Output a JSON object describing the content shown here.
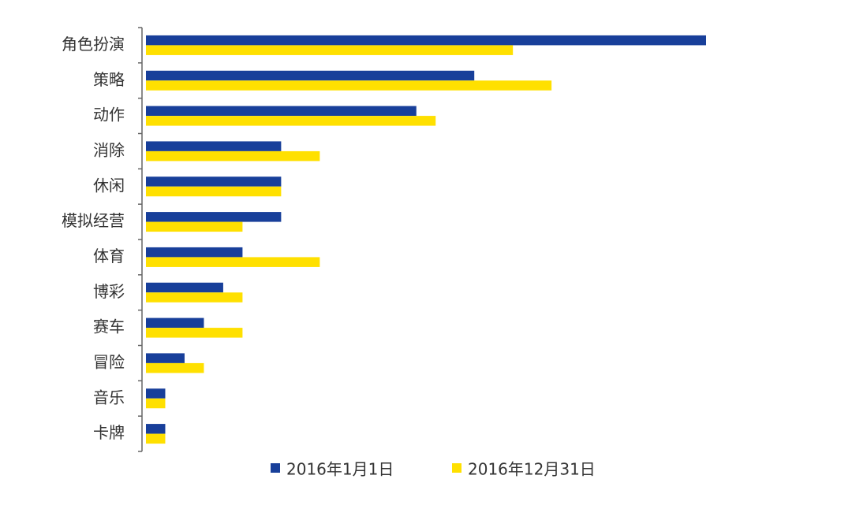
{
  "chart_data": {
    "type": "barh",
    "categories": [
      "角色扮演",
      "策略",
      "动作",
      "消除",
      "休闲",
      "模拟经营",
      "体育",
      "博彩",
      "赛车",
      "冒险",
      "音乐",
      "卡牌"
    ],
    "series": [
      {
        "name": "2016年1月1日",
        "color": "#183f9a",
        "values": [
          29,
          17,
          14,
          7,
          7,
          7,
          5,
          4,
          3,
          2,
          1,
          1
        ]
      },
      {
        "name": "2016年12月31日",
        "color": "#ffe000",
        "values": [
          19,
          21,
          15,
          9,
          7,
          5,
          9,
          5,
          5,
          3,
          1,
          1
        ]
      }
    ],
    "legend": "bottom"
  }
}
